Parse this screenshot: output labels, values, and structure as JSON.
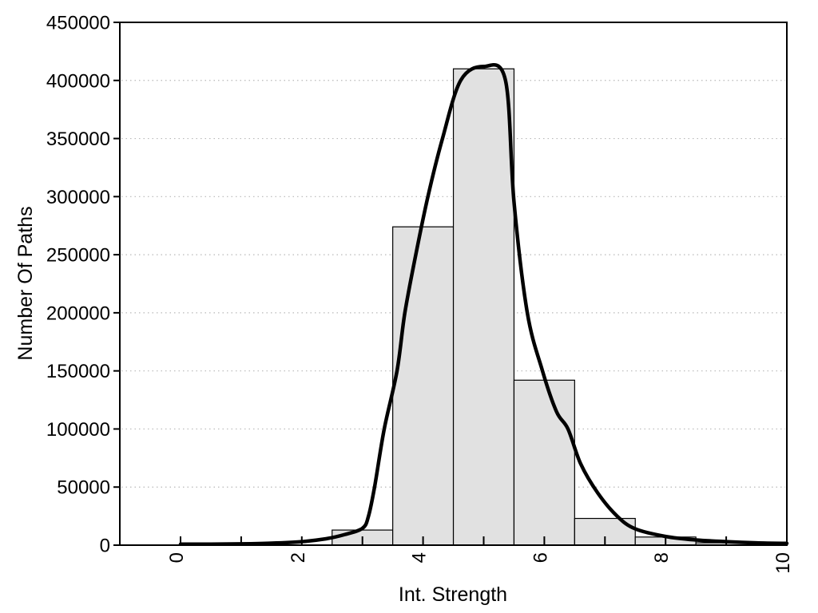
{
  "chart_data": {
    "type": "bar",
    "subtype": "histogram-with-density-curve",
    "title": "",
    "xlabel": "Int. Strength",
    "ylabel": "Number Of Paths",
    "xlim": [
      -1,
      10
    ],
    "ylim": [
      0,
      450000
    ],
    "grid": "dotted horizontal gridlines at every y tick",
    "legend": "none",
    "x_major_ticks": [
      {
        "value": 0,
        "label": "0"
      },
      {
        "value": 2,
        "label": "2"
      },
      {
        "value": 4,
        "label": "4"
      },
      {
        "value": 6,
        "label": "6"
      },
      {
        "value": 8,
        "label": "8"
      },
      {
        "value": 10,
        "label": "10"
      }
    ],
    "x_minor_ticks": [
      1,
      3,
      5,
      7,
      9
    ],
    "y_ticks": [
      {
        "value": 0,
        "label": "0"
      },
      {
        "value": 50000,
        "label": "50000"
      },
      {
        "value": 100000,
        "label": "100000"
      },
      {
        "value": 150000,
        "label": "150000"
      },
      {
        "value": 200000,
        "label": "200000"
      },
      {
        "value": 250000,
        "label": "250000"
      },
      {
        "value": 300000,
        "label": "300000"
      },
      {
        "value": 350000,
        "label": "350000"
      },
      {
        "value": 400000,
        "label": "400000"
      },
      {
        "value": 450000,
        "label": "450000"
      }
    ],
    "bars": [
      {
        "from": 2.5,
        "to": 3.5,
        "count": 13000
      },
      {
        "from": 3.5,
        "to": 4.5,
        "count": 274000
      },
      {
        "from": 4.5,
        "to": 5.5,
        "count": 410000
      },
      {
        "from": 5.5,
        "to": 6.5,
        "count": 142000
      },
      {
        "from": 6.5,
        "to": 7.5,
        "count": 23000
      },
      {
        "from": 7.5,
        "to": 8.5,
        "count": 7000
      },
      {
        "from": 8.5,
        "to": 9.5,
        "count": 2000
      }
    ],
    "curve_points": [
      [
        0.0,
        800
      ],
      [
        0.5,
        900
      ],
      [
        1.0,
        1100
      ],
      [
        1.5,
        1700
      ],
      [
        2.0,
        3000
      ],
      [
        2.4,
        5500
      ],
      [
        2.7,
        9000
      ],
      [
        3.0,
        14500
      ],
      [
        3.1,
        25000
      ],
      [
        3.2,
        50000
      ],
      [
        3.36,
        100000
      ],
      [
        3.57,
        150000
      ],
      [
        3.7,
        200000
      ],
      [
        3.88,
        250000
      ],
      [
        4.08,
        300000
      ],
      [
        4.32,
        350000
      ],
      [
        4.62,
        400000
      ],
      [
        5.0,
        412000
      ],
      [
        5.36,
        400000
      ],
      [
        5.5,
        295000
      ],
      [
        5.72,
        200000
      ],
      [
        5.97,
        150000
      ],
      [
        6.2,
        115000
      ],
      [
        6.39,
        100000
      ],
      [
        6.6,
        70000
      ],
      [
        6.88,
        45000
      ],
      [
        7.2,
        25000
      ],
      [
        7.5,
        14000
      ],
      [
        8.0,
        7500
      ],
      [
        8.5,
        4500
      ],
      [
        9.0,
        3000
      ],
      [
        9.5,
        2000
      ],
      [
        10.0,
        1500
      ]
    ],
    "colors": {
      "background": "#ffffff",
      "bar_fill": "#e1e1e1",
      "bar_stroke": "#000000",
      "curve": "#000000",
      "gridline": "#b8b8b8",
      "axis": "#000000",
      "text": "#000000"
    }
  }
}
